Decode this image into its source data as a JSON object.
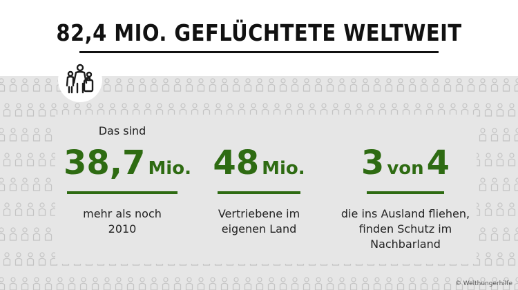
{
  "title": "82,4 MIO. GEFLÜCHTETE WELTWEIT",
  "icon": "people-group-icon",
  "stats": [
    {
      "prefix": "Das sind",
      "number": "38,7",
      "unit": "Mio.",
      "description_lines": [
        "mehr als noch",
        "2010"
      ]
    },
    {
      "prefix": "",
      "number": "48",
      "unit": "Mio.",
      "description_lines": [
        "Vertriebene im",
        "eigenen Land"
      ]
    },
    {
      "prefix": "",
      "number": "3",
      "unit": "von",
      "number2": "4",
      "description_lines": [
        "die ins Ausland fliehen,",
        "finden Schutz im",
        "Nachbarland"
      ]
    }
  ],
  "copyright": "© Welthungerhilfe",
  "colors": {
    "accent": "#2e6b12",
    "panel": "#e6e6e6",
    "text": "#111111"
  }
}
